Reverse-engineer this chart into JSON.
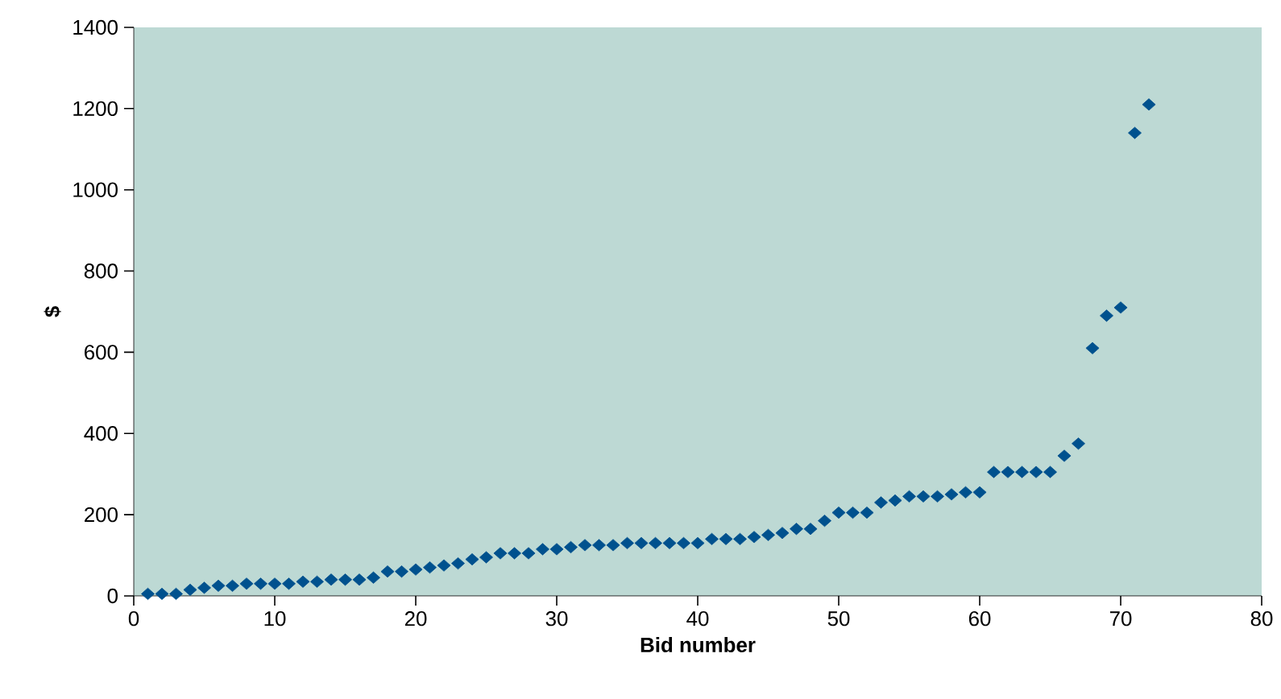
{
  "chart_data": {
    "type": "scatter",
    "xlabel": "Bid number",
    "ylabel": "$",
    "x": [
      1,
      2,
      3,
      4,
      5,
      6,
      7,
      8,
      9,
      10,
      11,
      12,
      13,
      14,
      15,
      16,
      17,
      18,
      19,
      20,
      21,
      22,
      23,
      24,
      25,
      26,
      27,
      28,
      29,
      30,
      31,
      32,
      33,
      34,
      35,
      36,
      37,
      38,
      39,
      40,
      41,
      42,
      43,
      44,
      45,
      46,
      47,
      48,
      49,
      50,
      51,
      52,
      53,
      54,
      55,
      56,
      57,
      58,
      59,
      60,
      61,
      62,
      63,
      64,
      65,
      66,
      67,
      68,
      69,
      70,
      71,
      72
    ],
    "series": [
      {
        "color": "#00518e",
        "values": [
          5,
          5,
          5,
          15,
          20,
          25,
          25,
          30,
          30,
          30,
          30,
          35,
          35,
          40,
          40,
          40,
          45,
          60,
          60,
          65,
          70,
          75,
          80,
          90,
          95,
          105,
          105,
          105,
          115,
          115,
          120,
          125,
          125,
          125,
          130,
          130,
          130,
          130,
          130,
          130,
          140,
          140,
          140,
          145,
          150,
          155,
          165,
          165,
          185,
          205,
          205,
          205,
          230,
          235,
          245,
          245,
          245,
          250,
          255,
          255,
          305,
          305,
          305,
          305,
          305,
          345,
          375,
          610,
          690,
          710,
          1140,
          1210
        ]
      }
    ],
    "xlim": [
      0,
      80
    ],
    "xticks": [
      0,
      10,
      20,
      30,
      40,
      50,
      60,
      70,
      80
    ],
    "ylim": [
      0,
      1400
    ],
    "yticks": [
      0,
      200,
      400,
      600,
      800,
      1000,
      1200,
      1400
    ],
    "marker": "diamond",
    "grid": false
  }
}
